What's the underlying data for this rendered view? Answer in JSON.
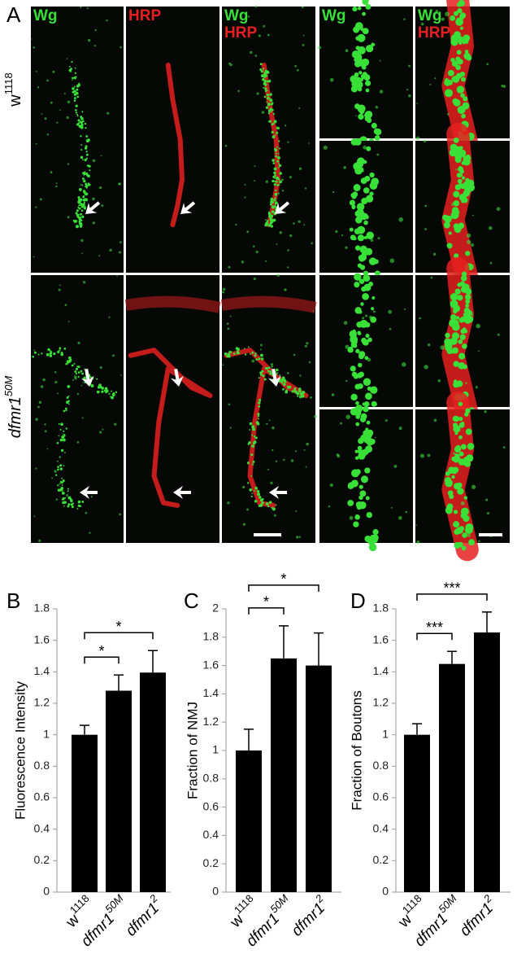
{
  "panel_labels": [
    "A",
    "B",
    "C",
    "D"
  ],
  "figure_a": {
    "column_labels": [
      [
        "Wg"
      ],
      [
        "HRP"
      ],
      [
        "Wg",
        "HRP"
      ],
      [
        "Wg"
      ],
      [
        "Wg",
        "HRP"
      ]
    ],
    "row_labels": [
      {
        "text": "w",
        "sup": "1118"
      },
      {
        "text": "dfmr1",
        "sup": "50M"
      }
    ]
  },
  "chart_data": [
    {
      "type": "bar",
      "y_label": "Fluorescence Intensity",
      "categories": [
        "w",
        "dfmr1",
        "dfmr1"
      ],
      "category_superscripts": [
        "1118",
        "50M",
        "2"
      ],
      "values": [
        1.0,
        1.28,
        1.395
      ],
      "errors": [
        0.06,
        0.1,
        0.14
      ],
      "color": "#000000",
      "ylim": [
        0,
        1.8
      ],
      "yticks": [
        0,
        0.2,
        0.4,
        0.6,
        0.8,
        1,
        1.2,
        1.4,
        1.6,
        1.8
      ],
      "annotations": [
        {
          "from": 0,
          "to": 1,
          "label": "*"
        },
        {
          "from": 0,
          "to": 2,
          "label": "*"
        }
      ]
    },
    {
      "type": "bar",
      "y_label": "Fraction of NMJ",
      "categories": [
        "w",
        "dfmr1",
        "dfmr1"
      ],
      "category_superscripts": [
        "1118",
        "50M",
        "2"
      ],
      "values": [
        1.0,
        1.65,
        1.6
      ],
      "errors": [
        0.15,
        0.23,
        0.23
      ],
      "color": "#000000",
      "ylim": [
        0,
        2
      ],
      "yticks": [
        0,
        0.2,
        0.4,
        0.6,
        0.8,
        1,
        1.2,
        1.4,
        1.6,
        1.8,
        2
      ],
      "annotations": [
        {
          "from": 0,
          "to": 1,
          "label": "*"
        },
        {
          "from": 0,
          "to": 2,
          "label": "*"
        }
      ]
    },
    {
      "type": "bar",
      "y_label": "Fraction of Boutons",
      "categories": [
        "w",
        "dfmr1",
        "dfmr1"
      ],
      "category_superscripts": [
        "1118",
        "50M",
        "2"
      ],
      "values": [
        1.0,
        1.45,
        1.65
      ],
      "errors": [
        0.07,
        0.08,
        0.13
      ],
      "color": "#000000",
      "ylim": [
        0,
        1.8
      ],
      "yticks": [
        0,
        0.2,
        0.4,
        0.6,
        0.8,
        1,
        1.2,
        1.4,
        1.6,
        1.8
      ],
      "annotations": [
        {
          "from": 0,
          "to": 1,
          "label": "***"
        },
        {
          "from": 0,
          "to": 2,
          "label": "***"
        }
      ]
    }
  ]
}
